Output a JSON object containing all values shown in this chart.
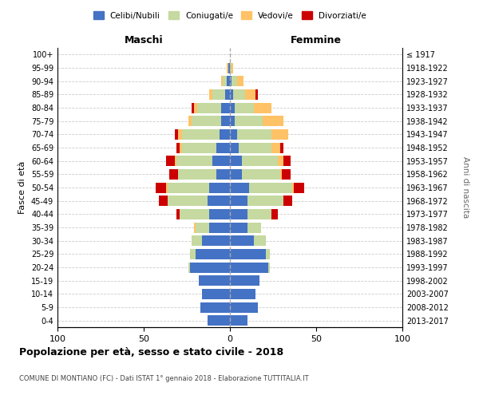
{
  "age_groups": [
    "0-4",
    "5-9",
    "10-14",
    "15-19",
    "20-24",
    "25-29",
    "30-34",
    "35-39",
    "40-44",
    "45-49",
    "50-54",
    "55-59",
    "60-64",
    "65-69",
    "70-74",
    "75-79",
    "80-84",
    "85-89",
    "90-94",
    "95-99",
    "100+"
  ],
  "birth_years": [
    "2013-2017",
    "2008-2012",
    "2003-2007",
    "1998-2002",
    "1993-1997",
    "1988-1992",
    "1983-1987",
    "1978-1982",
    "1973-1977",
    "1968-1972",
    "1963-1967",
    "1958-1962",
    "1953-1957",
    "1948-1952",
    "1943-1947",
    "1938-1942",
    "1933-1937",
    "1928-1932",
    "1923-1927",
    "1918-1922",
    "≤ 1917"
  ],
  "maschi": {
    "celibi": [
      13,
      17,
      16,
      18,
      23,
      20,
      16,
      12,
      12,
      13,
      12,
      8,
      10,
      8,
      6,
      5,
      5,
      3,
      2,
      1,
      0
    ],
    "coniugati": [
      0,
      0,
      0,
      0,
      1,
      3,
      6,
      8,
      17,
      23,
      24,
      22,
      21,
      20,
      22,
      17,
      14,
      7,
      2,
      0,
      0
    ],
    "vedovi": [
      0,
      0,
      0,
      0,
      0,
      0,
      0,
      1,
      0,
      0,
      1,
      0,
      1,
      1,
      2,
      2,
      2,
      2,
      1,
      1,
      0
    ],
    "divorziati": [
      0,
      0,
      0,
      0,
      0,
      0,
      0,
      0,
      2,
      5,
      6,
      5,
      5,
      2,
      2,
      0,
      1,
      0,
      0,
      0,
      0
    ]
  },
  "femmine": {
    "nubili": [
      10,
      16,
      15,
      17,
      22,
      21,
      14,
      10,
      10,
      10,
      11,
      7,
      7,
      5,
      4,
      3,
      3,
      2,
      1,
      0,
      0
    ],
    "coniugate": [
      0,
      0,
      0,
      0,
      1,
      2,
      7,
      8,
      14,
      21,
      25,
      22,
      21,
      19,
      20,
      16,
      11,
      7,
      3,
      1,
      0
    ],
    "vedove": [
      0,
      0,
      0,
      0,
      0,
      0,
      0,
      0,
      0,
      0,
      1,
      1,
      3,
      5,
      10,
      12,
      10,
      6,
      4,
      1,
      0
    ],
    "divorziate": [
      0,
      0,
      0,
      0,
      0,
      0,
      0,
      0,
      4,
      5,
      6,
      5,
      4,
      2,
      0,
      0,
      0,
      1,
      0,
      0,
      0
    ]
  },
  "colors": {
    "celibi": "#4472c4",
    "coniugati": "#c5d9a0",
    "vedovi": "#ffc266",
    "divorziati": "#cc0000"
  },
  "xlim": 100,
  "title": "Popolazione per età, sesso e stato civile - 2018",
  "subtitle": "COMUNE DI MONTIANO (FC) - Dati ISTAT 1° gennaio 2018 - Elaborazione TUTTITALIA.IT",
  "ylabel_left": "Fasce di età",
  "ylabel_right": "Anni di nascita",
  "xlabel_maschi": "Maschi",
  "xlabel_femmine": "Femmine",
  "legend_labels": [
    "Celibi/Nubili",
    "Coniugati/e",
    "Vedovi/e",
    "Divorziati/e"
  ],
  "bg_color": "#ffffff",
  "grid_color": "#cccccc"
}
